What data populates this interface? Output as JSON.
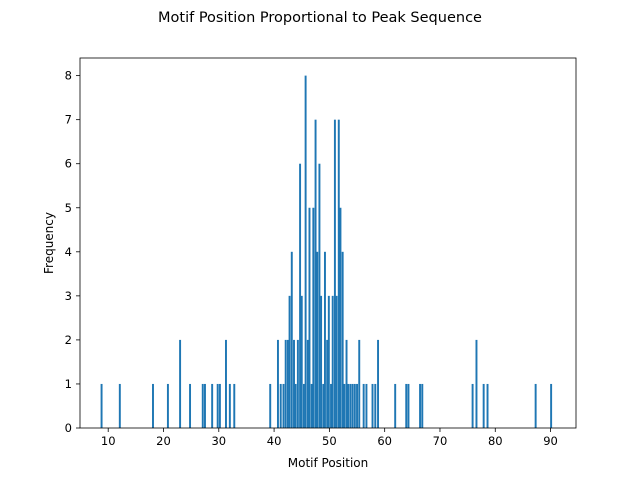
{
  "chart_data": {
    "type": "bar",
    "title": "Motif Position Proportional to Peak Sequence",
    "xlabel": "Motif Position",
    "ylabel": "Frequency",
    "xlim": [
      4.9,
      94.6
    ],
    "ylim": [
      0,
      8.4
    ],
    "xticks": [
      10,
      20,
      30,
      40,
      50,
      60,
      70,
      80,
      90
    ],
    "yticks": [
      0,
      1,
      2,
      3,
      4,
      5,
      6,
      7,
      8
    ],
    "bar_width": 0.35,
    "grid": false,
    "color": "#1f77b4",
    "x": [
      8.8,
      12.1,
      18.1,
      20.8,
      23.0,
      24.8,
      27.1,
      27.5,
      28.8,
      29.8,
      30.2,
      31.3,
      32.0,
      32.8,
      39.3,
      40.7,
      41.2,
      41.7,
      42.1,
      42.5,
      42.8,
      43.2,
      43.6,
      43.9,
      44.3,
      44.7,
      45.0,
      45.4,
      45.7,
      46.1,
      46.4,
      46.8,
      47.1,
      47.5,
      47.8,
      48.2,
      48.5,
      48.9,
      49.2,
      49.6,
      49.9,
      50.3,
      50.6,
      51.0,
      51.3,
      51.7,
      52.0,
      52.4,
      52.7,
      53.1,
      53.4,
      53.8,
      54.2,
      54.6,
      55.0,
      55.4,
      56.2,
      56.7,
      57.8,
      58.3,
      58.8,
      61.9,
      63.9,
      64.3,
      66.4,
      66.8,
      75.9,
      76.6,
      77.9,
      78.6,
      87.3,
      90.1
    ],
    "values": [
      1,
      1,
      1,
      1,
      2,
      1,
      1,
      1,
      1,
      1,
      1,
      2,
      1,
      1,
      1,
      2,
      1,
      1,
      2,
      2,
      3,
      4,
      2,
      1,
      2,
      6,
      3,
      1,
      8,
      2,
      5,
      1,
      5,
      7,
      4,
      6,
      3,
      1,
      4,
      2,
      3,
      1,
      3,
      7,
      3,
      7,
      5,
      4,
      1,
      2,
      1,
      1,
      1,
      1,
      1,
      2,
      1,
      1,
      1,
      1,
      2,
      1,
      1,
      1,
      1,
      1,
      1,
      2,
      1,
      1,
      1,
      1
    ]
  }
}
